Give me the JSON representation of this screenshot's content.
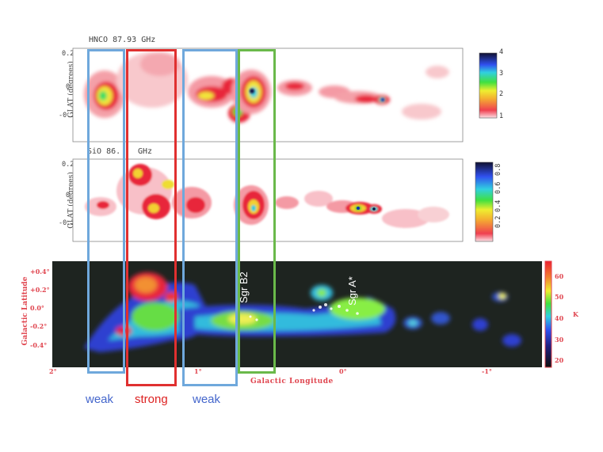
{
  "chart_data": [
    {
      "type": "heatmap",
      "title": "HNCO 87.93 GHz",
      "ylabel": "GLAT (degrees)",
      "yticks": [
        "0.2",
        "0",
        "-0.2"
      ],
      "colorbar_ticks": [
        "1",
        "2",
        "3",
        "4"
      ],
      "colorbar_range": [
        0.3,
        4
      ]
    },
    {
      "type": "heatmap",
      "title": "SiO 86.85 GHz",
      "title_visible": "SiO 86.",
      "title_visible_tail": "GHz",
      "ylabel": "GLAT (degrees)",
      "yticks": [
        "0.2",
        "0",
        "-0.2"
      ],
      "colorbar_ticks": [
        "0.2",
        "0.4",
        "0.6",
        "0.8"
      ],
      "colorbar_range": [
        0.15,
        0.9
      ]
    },
    {
      "type": "heatmap",
      "xlabel": "Galactic Longitude",
      "ylabel": "Galactic Latitude",
      "xticks": [
        "2°",
        "1°",
        "0°",
        "-1°"
      ],
      "yticks": [
        "+0.4°",
        "+0.2°",
        "0.0°",
        "-0.2°",
        "-0.4°"
      ],
      "colorbar_label": "K",
      "colorbar_ticks": [
        "60",
        "50",
        "40",
        "30",
        "20"
      ],
      "colorbar_range": [
        18,
        65
      ],
      "annotations": [
        "Sgr B2",
        "Sgr A*"
      ]
    }
  ],
  "regions": [
    {
      "label": "weak",
      "color": "#6fa8dc"
    },
    {
      "label": "strong",
      "color": "#e03030"
    },
    {
      "label": "weak",
      "color": "#6fa8dc"
    },
    {
      "label": "",
      "color": "#6ab94a"
    }
  ],
  "colors": {
    "weak_text": "#4466cc",
    "strong_text": "#dd2222",
    "axis_red": "#e0454f"
  }
}
